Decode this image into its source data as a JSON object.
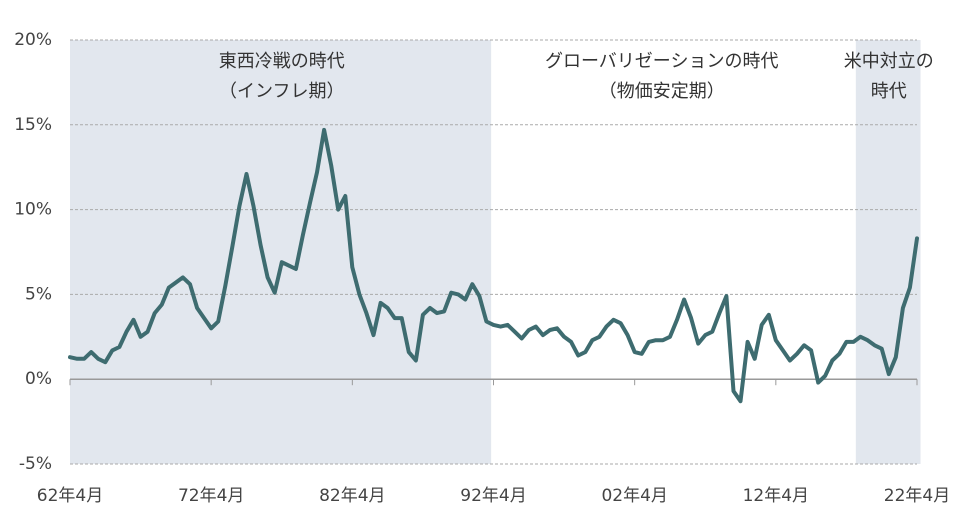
{
  "chart_data": {
    "type": "line",
    "color": "#3e6c70",
    "grid": true,
    "x": [
      0,
      6,
      12,
      18,
      24,
      30,
      36,
      42,
      48,
      54,
      60,
      66,
      72,
      78,
      84,
      90,
      96,
      102,
      108,
      114,
      120,
      126,
      132,
      138,
      144,
      150,
      156,
      162,
      168,
      174,
      180,
      186,
      192,
      198,
      204,
      210,
      216,
      222,
      228,
      234,
      240,
      246,
      252,
      258,
      264,
      270,
      276,
      282,
      288,
      294,
      300,
      306,
      312,
      318,
      324,
      330,
      336,
      342,
      348,
      354,
      360,
      366,
      372,
      378,
      384,
      390,
      396,
      402,
      408,
      414,
      420,
      426,
      432,
      438,
      444,
      450,
      456,
      462,
      468,
      474,
      480,
      486,
      492,
      498,
      504,
      510,
      516,
      522,
      528,
      534,
      540,
      546,
      552,
      558,
      564,
      570,
      576,
      582,
      588,
      594,
      600,
      606,
      612,
      618,
      624,
      630,
      636,
      642,
      648,
      654,
      660,
      666,
      672,
      678,
      684,
      690,
      696,
      702,
      708,
      714,
      720
    ],
    "values": [
      1.3,
      1.2,
      1.2,
      1.6,
      1.2,
      1.0,
      1.7,
      1.9,
      2.8,
      3.5,
      2.5,
      2.8,
      3.9,
      4.4,
      5.4,
      5.7,
      6.0,
      5.6,
      4.2,
      3.6,
      3.0,
      3.4,
      5.5,
      7.8,
      10.2,
      12.1,
      10.2,
      7.9,
      6.0,
      5.1,
      6.9,
      6.7,
      6.5,
      8.5,
      10.4,
      12.2,
      14.7,
      12.6,
      10.0,
      10.8,
      6.6,
      5.0,
      3.9,
      2.6,
      4.5,
      4.2,
      3.6,
      3.6,
      1.6,
      1.1,
      3.8,
      4.2,
      3.9,
      4.0,
      5.1,
      5.0,
      4.7,
      5.6,
      4.9,
      3.4,
      3.2,
      3.1,
      3.2,
      2.8,
      2.4,
      2.9,
      3.1,
      2.6,
      2.9,
      3.0,
      2.5,
      2.2,
      1.4,
      1.6,
      2.3,
      2.5,
      3.1,
      3.5,
      3.3,
      2.6,
      1.6,
      1.5,
      2.2,
      2.3,
      2.3,
      2.5,
      3.5,
      4.7,
      3.6,
      2.1,
      2.6,
      2.8,
      3.9,
      4.9,
      -0.7,
      -1.3,
      2.2,
      1.2,
      3.2,
      3.8,
      2.3,
      1.7,
      1.1,
      1.5,
      2.0,
      1.7,
      -0.2,
      0.2,
      1.1,
      1.5,
      2.2,
      2.2,
      2.5,
      2.3,
      2.0,
      1.8,
      0.3,
      1.3,
      4.2,
      5.4,
      8.3
    ],
    "xlim": [
      0,
      720
    ],
    "xticks": [
      {
        "value": 0,
        "label": "62年4月"
      },
      {
        "value": 120,
        "label": "72年4月"
      },
      {
        "value": 240,
        "label": "82年4月"
      },
      {
        "value": 360,
        "label": "92年4月"
      },
      {
        "value": 480,
        "label": "02年4月"
      },
      {
        "value": 600,
        "label": "12年4月"
      },
      {
        "value": 720,
        "label": "22年4月"
      }
    ],
    "ylim": [
      -5,
      20
    ],
    "yticks": [
      {
        "value": -5,
        "label": "-5%"
      },
      {
        "value": 0,
        "label": "0%"
      },
      {
        "value": 5,
        "label": "5%"
      },
      {
        "value": 10,
        "label": "10%"
      },
      {
        "value": 15,
        "label": "15%"
      },
      {
        "value": 20,
        "label": "20%"
      }
    ],
    "shaded_periods": [
      [
        0,
        358
      ],
      [
        668,
        723
      ]
    ],
    "annotations": [
      {
        "x": 180,
        "lines": [
          "東西冷戦の時代",
          "（インフレ期）"
        ]
      },
      {
        "x": 503,
        "lines": [
          "グローバリゼーションの時代",
          "（物価安定期）"
        ]
      },
      {
        "x": 696,
        "lines": [
          "米中対立の",
          "時代"
        ]
      }
    ]
  }
}
